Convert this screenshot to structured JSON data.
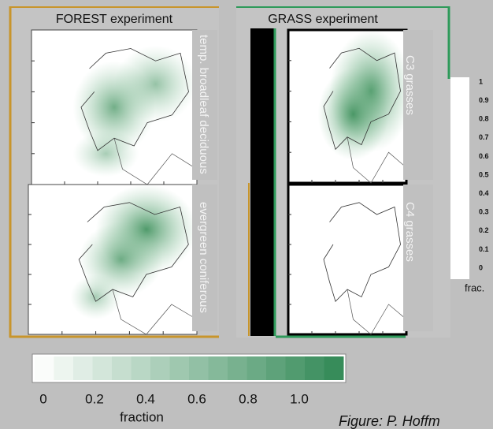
{
  "panels": [
    {
      "title": "FOREST experiment",
      "maps": [
        {
          "label": "temp. broadleaf deciduous"
        },
        {
          "label": "evergreen coniferous"
        }
      ]
    },
    {
      "title": "GRASS experiment",
      "maps": [
        {
          "label": "C3 grasses"
        },
        {
          "label": "C4 grasses"
        }
      ]
    }
  ],
  "side_colorbar": {
    "ticks": [
      "1",
      "0.9",
      "0.8",
      "0.7",
      "0.6",
      "0.5",
      "0.4",
      "0.3",
      "0.2",
      "0.1",
      "0"
    ],
    "label": "frac."
  },
  "colorbar": {
    "ticks": [
      "0",
      "0.2",
      "0.4",
      "0.6",
      "0.8",
      "1.0"
    ],
    "label": "fraction"
  },
  "caption": "Figure: P. Hoffm"
}
